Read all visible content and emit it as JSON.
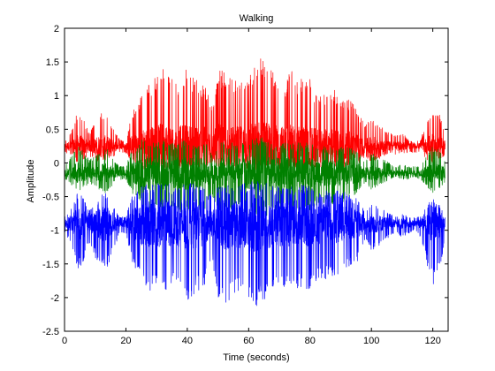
{
  "chart_data": {
    "type": "line",
    "title": "Walking",
    "xlabel": "Time (seconds)",
    "ylabel": "Amplitude",
    "xlim": [
      0,
      125
    ],
    "ylim": [
      -2.5,
      2
    ],
    "xticks": [
      0,
      20,
      40,
      60,
      80,
      100,
      120
    ],
    "yticks": [
      -2.5,
      -2,
      -1.5,
      -1,
      -0.5,
      0,
      0.5,
      1,
      1.5,
      2
    ],
    "ytick_labels": [
      "-2.5",
      "-2",
      "-1.5",
      "-1",
      "-0.5",
      "0",
      "0.5",
      "1",
      "1.5",
      "2"
    ],
    "grid": false,
    "legend": "none",
    "series": [
      {
        "color": "#ff0000",
        "baseline": 0.25,
        "x": [
          0,
          3,
          4,
          6,
          8,
          10,
          12,
          14,
          16,
          18,
          20,
          22,
          24,
          26,
          28,
          30,
          32,
          34,
          36,
          38,
          40,
          42,
          44,
          46,
          48,
          50,
          52,
          54,
          56,
          58,
          60,
          62,
          64,
          66,
          68,
          70,
          72,
          74,
          76,
          78,
          80,
          82,
          84,
          86,
          88,
          90,
          92,
          94,
          96,
          98,
          100,
          102,
          104,
          106,
          108,
          110,
          112,
          114,
          116,
          118,
          120,
          122,
          124
        ],
        "upper": [
          0.3,
          0.55,
          0.75,
          0.7,
          0.45,
          0.6,
          0.75,
          0.7,
          0.5,
          0.35,
          0.3,
          0.75,
          0.9,
          1.1,
          1.2,
          1.3,
          1.45,
          1.35,
          1.15,
          1.3,
          1.4,
          1.3,
          1.2,
          1.15,
          0.85,
          1.35,
          1.4,
          1.25,
          1.25,
          1.3,
          1.4,
          1.45,
          1.65,
          1.5,
          1.35,
          1.25,
          1.2,
          1.4,
          1.25,
          1.3,
          1.25,
          1.05,
          1.0,
          1.05,
          1.1,
          1.0,
          0.95,
          0.9,
          0.75,
          0.55,
          0.7,
          0.6,
          0.5,
          0.45,
          0.4,
          0.45,
          0.35,
          0.3,
          0.35,
          0.6,
          0.8,
          0.75,
          0.5
        ],
        "lower": [
          0.15,
          0.1,
          0.0,
          0.05,
          0.1,
          0.05,
          0.0,
          0.05,
          0.1,
          0.15,
          0.15,
          0.0,
          -0.05,
          -0.1,
          -0.1,
          -0.05,
          -0.1,
          -0.1,
          -0.05,
          -0.1,
          -0.1,
          -0.05,
          -0.1,
          -0.1,
          0.0,
          -0.1,
          -0.1,
          -0.05,
          -0.1,
          -0.05,
          -0.1,
          -0.1,
          -0.1,
          -0.1,
          -0.05,
          -0.1,
          -0.1,
          -0.05,
          -0.1,
          -0.1,
          -0.05,
          -0.1,
          -0.05,
          -0.1,
          -0.05,
          -0.1,
          -0.05,
          -0.05,
          0.0,
          0.1,
          0.0,
          0.05,
          0.1,
          0.15,
          0.1,
          0.15,
          0.15,
          0.15,
          0.15,
          0.05,
          0.0,
          0.05,
          0.1
        ]
      },
      {
        "color": "#008000",
        "baseline": -0.15,
        "x": [
          0,
          3,
          4,
          6,
          8,
          10,
          12,
          14,
          16,
          18,
          20,
          22,
          24,
          26,
          28,
          30,
          32,
          34,
          36,
          38,
          40,
          42,
          44,
          46,
          48,
          50,
          52,
          54,
          56,
          58,
          60,
          62,
          64,
          66,
          68,
          70,
          72,
          74,
          76,
          78,
          80,
          82,
          84,
          86,
          88,
          90,
          92,
          94,
          96,
          98,
          100,
          102,
          104,
          106,
          108,
          110,
          112,
          114,
          116,
          118,
          120,
          122,
          124
        ],
        "upper": [
          -0.05,
          0.15,
          0.25,
          0.2,
          0.05,
          0.1,
          0.2,
          0.2,
          0.05,
          -0.05,
          -0.05,
          0.2,
          0.3,
          0.4,
          0.35,
          0.3,
          0.35,
          0.3,
          0.3,
          0.35,
          0.35,
          0.3,
          0.3,
          0.3,
          0.15,
          0.3,
          0.35,
          0.3,
          0.3,
          0.3,
          0.35,
          0.35,
          0.4,
          0.35,
          0.3,
          0.3,
          0.3,
          0.3,
          0.3,
          0.3,
          0.3,
          0.25,
          0.25,
          0.25,
          0.25,
          0.25,
          0.25,
          0.2,
          0.15,
          0.05,
          0.15,
          0.1,
          0.05,
          0.0,
          -0.05,
          0.0,
          -0.05,
          -0.05,
          -0.05,
          0.1,
          0.25,
          0.2,
          0.05
        ],
        "lower": [
          -0.25,
          -0.35,
          -0.45,
          -0.4,
          -0.3,
          -0.35,
          -0.45,
          -0.45,
          -0.3,
          -0.25,
          -0.25,
          -0.45,
          -0.55,
          -0.7,
          -0.75,
          -0.7,
          -0.75,
          -0.7,
          -0.7,
          -0.75,
          -0.75,
          -0.7,
          -0.7,
          -0.7,
          -0.5,
          -0.75,
          -0.8,
          -0.7,
          -0.7,
          -0.7,
          -0.8,
          -0.8,
          -0.85,
          -0.8,
          -0.7,
          -0.7,
          -0.7,
          -0.75,
          -0.7,
          -0.7,
          -0.7,
          -0.65,
          -0.6,
          -0.65,
          -0.6,
          -0.6,
          -0.55,
          -0.5,
          -0.45,
          -0.3,
          -0.4,
          -0.35,
          -0.3,
          -0.25,
          -0.2,
          -0.25,
          -0.25,
          -0.2,
          -0.25,
          -0.35,
          -0.45,
          -0.4,
          -0.3
        ]
      },
      {
        "color": "#0000ff",
        "baseline": -0.9,
        "x": [
          0,
          3,
          4,
          6,
          8,
          10,
          12,
          14,
          16,
          18,
          20,
          22,
          24,
          26,
          28,
          30,
          32,
          34,
          36,
          38,
          40,
          42,
          44,
          46,
          48,
          50,
          52,
          54,
          56,
          58,
          60,
          62,
          64,
          66,
          68,
          70,
          72,
          74,
          76,
          78,
          80,
          82,
          84,
          86,
          88,
          90,
          92,
          94,
          96,
          98,
          100,
          102,
          104,
          106,
          108,
          110,
          112,
          114,
          116,
          118,
          120,
          122,
          124
        ],
        "upper": [
          -0.8,
          -0.6,
          -0.45,
          -0.5,
          -0.7,
          -0.6,
          -0.45,
          -0.45,
          -0.65,
          -0.8,
          -0.8,
          -0.5,
          -0.4,
          -0.3,
          -0.3,
          -0.3,
          -0.3,
          -0.3,
          -0.35,
          -0.3,
          -0.3,
          -0.3,
          -0.35,
          -0.35,
          -0.5,
          -0.3,
          -0.3,
          -0.35,
          -0.35,
          -0.3,
          -0.3,
          -0.25,
          -0.3,
          -0.3,
          -0.35,
          -0.35,
          -0.35,
          -0.35,
          -0.35,
          -0.3,
          -0.35,
          -0.4,
          -0.4,
          -0.4,
          -0.4,
          -0.4,
          -0.45,
          -0.5,
          -0.55,
          -0.7,
          -0.6,
          -0.65,
          -0.7,
          -0.75,
          -0.8,
          -0.75,
          -0.8,
          -0.8,
          -0.8,
          -0.65,
          -0.5,
          -0.6,
          -0.75
        ],
        "lower": [
          -1.0,
          -1.35,
          -1.6,
          -1.5,
          -1.2,
          -1.4,
          -1.6,
          -1.55,
          -1.3,
          -1.05,
          -1.05,
          -1.5,
          -1.7,
          -1.85,
          -1.9,
          -1.85,
          -1.9,
          -1.95,
          -1.85,
          -2.0,
          -2.05,
          -1.95,
          -1.9,
          -1.8,
          -1.4,
          -2.0,
          -2.2,
          -2.0,
          -1.95,
          -2.0,
          -2.15,
          -2.2,
          -2.1,
          -2.0,
          -1.9,
          -1.9,
          -1.85,
          -2.0,
          -1.9,
          -1.85,
          -1.9,
          -1.8,
          -1.7,
          -1.75,
          -1.7,
          -1.65,
          -1.6,
          -1.5,
          -1.45,
          -1.1,
          -1.3,
          -1.25,
          -1.15,
          -1.1,
          -1.05,
          -1.1,
          -1.05,
          -1.0,
          -1.1,
          -1.5,
          -1.85,
          -1.6,
          -1.2
        ]
      }
    ]
  }
}
